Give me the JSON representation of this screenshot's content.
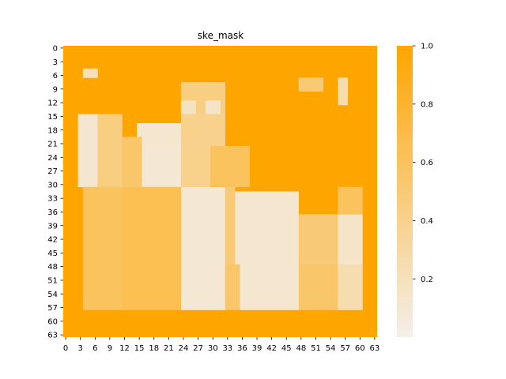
{
  "chart_data": {
    "type": "heatmap",
    "title": "ske_mask",
    "xlabel": "",
    "ylabel": "",
    "rows": 64,
    "cols": 64,
    "x_tick_labels": [
      "0",
      "3",
      "6",
      "9",
      "12",
      "15",
      "18",
      "21",
      "24",
      "27",
      "30",
      "33",
      "36",
      "39",
      "42",
      "45",
      "48",
      "51",
      "54",
      "57",
      "60",
      "63"
    ],
    "y_tick_labels": [
      "0",
      "3",
      "6",
      "9",
      "12",
      "15",
      "18",
      "21",
      "24",
      "27",
      "30",
      "33",
      "36",
      "39",
      "42",
      "45",
      "48",
      "51",
      "54",
      "57",
      "60",
      "63"
    ],
    "colorbar": {
      "range": [
        0.0,
        1.0
      ],
      "tick_labels": [
        "0.2",
        "0.4",
        "0.6",
        "0.8",
        "1.0"
      ],
      "low_color": "#f3efeb",
      "high_color": "#ffa500"
    },
    "grid": false,
    "regions": [
      {
        "rows": [
          5,
          7
        ],
        "cols": [
          4,
          7
        ],
        "value": 0.2
      },
      {
        "rows": [
          15,
          31
        ],
        "cols": [
          3,
          7
        ],
        "value": 0.12
      },
      {
        "rows": [
          17,
          22
        ],
        "cols": [
          15,
          24
        ],
        "value": 0.12
      },
      {
        "rows": [
          22,
          31
        ],
        "cols": [
          16,
          30
        ],
        "value": 0.1
      },
      {
        "rows": [
          31,
          58
        ],
        "cols": [
          24,
          33
        ],
        "value": 0.1
      },
      {
        "rows": [
          32,
          48
        ],
        "cols": [
          35,
          48
        ],
        "value": 0.12
      },
      {
        "rows": [
          48,
          58
        ],
        "cols": [
          36,
          48
        ],
        "value": 0.12
      },
      {
        "rows": [
          37,
          48
        ],
        "cols": [
          48,
          56
        ],
        "value": 0.5
      },
      {
        "rows": [
          37,
          48
        ],
        "cols": [
          56,
          61
        ],
        "value": 0.15
      },
      {
        "rows": [
          48,
          58
        ],
        "cols": [
          48,
          56
        ],
        "value": 0.55
      },
      {
        "rows": [
          48,
          58
        ],
        "cols": [
          56,
          61
        ],
        "value": 0.25
      },
      {
        "rows": [
          8,
          15
        ],
        "cols": [
          24,
          33
        ],
        "value": 0.45
      },
      {
        "rows": [
          12,
          15
        ],
        "cols": [
          24,
          27
        ],
        "value": 0.18
      },
      {
        "rows": [
          12,
          15
        ],
        "cols": [
          29,
          32
        ],
        "value": 0.15
      },
      {
        "rows": [
          7,
          10
        ],
        "cols": [
          48,
          53
        ],
        "value": 0.5
      },
      {
        "rows": [
          7,
          13
        ],
        "cols": [
          56,
          58
        ],
        "value": 0.25
      },
      {
        "rows": [
          15,
          31
        ],
        "cols": [
          7,
          12
        ],
        "value": 0.45
      },
      {
        "rows": [
          31,
          58
        ],
        "cols": [
          4,
          12
        ],
        "value": 0.6
      },
      {
        "rows": [
          31,
          58
        ],
        "cols": [
          12,
          24
        ],
        "value": 0.65
      },
      {
        "rows": [
          20,
          31
        ],
        "cols": [
          12,
          16
        ],
        "value": 0.55
      },
      {
        "rows": [
          15,
          31
        ],
        "cols": [
          24,
          33
        ],
        "value": 0.4
      },
      {
        "rows": [
          31,
          48
        ],
        "cols": [
          33,
          35
        ],
        "value": 0.5
      },
      {
        "rows": [
          48,
          58
        ],
        "cols": [
          33,
          36
        ],
        "value": 0.55
      },
      {
        "rows": [
          22,
          31
        ],
        "cols": [
          30,
          38
        ],
        "value": 0.6
      },
      {
        "rows": [
          31,
          37
        ],
        "cols": [
          56,
          61
        ],
        "value": 0.6
      }
    ]
  }
}
